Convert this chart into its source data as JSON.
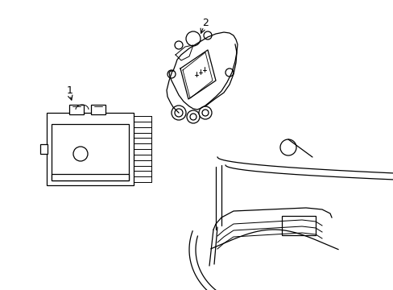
{
  "background_color": "#ffffff",
  "line_color": "#000000",
  "fig_width": 4.89,
  "fig_height": 3.6,
  "dpi": 100,
  "label1": "1",
  "label2": "2"
}
